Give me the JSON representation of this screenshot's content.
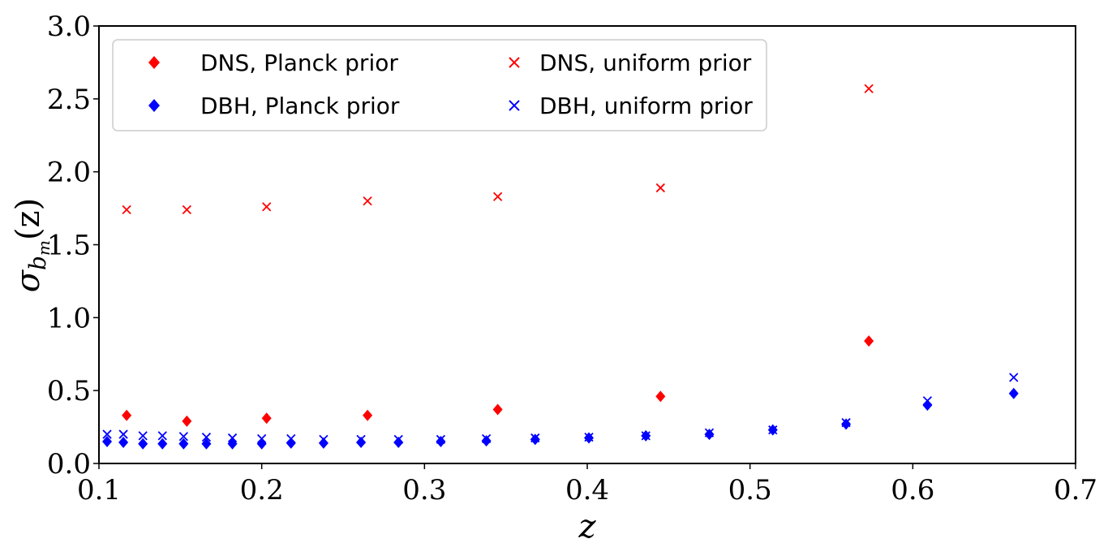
{
  "chart_data": {
    "type": "scatter",
    "xlabel": "z",
    "ylabel": "σ",
    "ylabel_sub": "b",
    "ylabel_subsub": "m",
    "ylabel_arg": "(z)",
    "xlim": [
      0.1,
      0.7
    ],
    "ylim": [
      0.0,
      3.0
    ],
    "xticks": [
      "0.1",
      "0.2",
      "0.3",
      "0.4",
      "0.5",
      "0.6",
      "0.7"
    ],
    "yticks": [
      "0.0",
      "0.5",
      "1.0",
      "1.5",
      "2.0",
      "2.5",
      "3.0"
    ],
    "grid": false,
    "legend_position": "top-left",
    "series": [
      {
        "name": "DNS, Planck prior",
        "marker": "diamond",
        "color": "#ff0000",
        "x": [
          0.117,
          0.154,
          0.203,
          0.265,
          0.345,
          0.445,
          0.573
        ],
        "y": [
          0.33,
          0.29,
          0.31,
          0.33,
          0.37,
          0.46,
          0.84
        ]
      },
      {
        "name": "DNS, uniform prior",
        "marker": "x",
        "color": "#ff0000",
        "x": [
          0.117,
          0.154,
          0.203,
          0.265,
          0.345,
          0.445,
          0.573
        ],
        "y": [
          1.74,
          1.74,
          1.76,
          1.8,
          1.83,
          1.89,
          2.57
        ]
      },
      {
        "name": "DBH, Planck prior",
        "marker": "diamond",
        "color": "#0000ff",
        "x": [
          0.105,
          0.115,
          0.127,
          0.139,
          0.152,
          0.166,
          0.182,
          0.2,
          0.218,
          0.238,
          0.261,
          0.284,
          0.31,
          0.338,
          0.368,
          0.401,
          0.436,
          0.475,
          0.514,
          0.559,
          0.609,
          0.662
        ],
        "y": [
          0.15,
          0.145,
          0.135,
          0.135,
          0.135,
          0.135,
          0.135,
          0.135,
          0.14,
          0.14,
          0.145,
          0.145,
          0.15,
          0.155,
          0.165,
          0.175,
          0.19,
          0.2,
          0.23,
          0.27,
          0.4,
          0.48
        ]
      },
      {
        "name": "DBH, uniform prior",
        "marker": "x",
        "color": "#0000ff",
        "x": [
          0.105,
          0.115,
          0.127,
          0.139,
          0.152,
          0.166,
          0.182,
          0.2,
          0.218,
          0.238,
          0.261,
          0.284,
          0.31,
          0.338,
          0.368,
          0.401,
          0.436,
          0.475,
          0.514,
          0.559,
          0.609,
          0.662
        ],
        "y": [
          0.2,
          0.2,
          0.19,
          0.19,
          0.185,
          0.18,
          0.175,
          0.17,
          0.17,
          0.165,
          0.165,
          0.165,
          0.165,
          0.17,
          0.175,
          0.18,
          0.19,
          0.21,
          0.23,
          0.28,
          0.43,
          0.59
        ]
      }
    ]
  }
}
